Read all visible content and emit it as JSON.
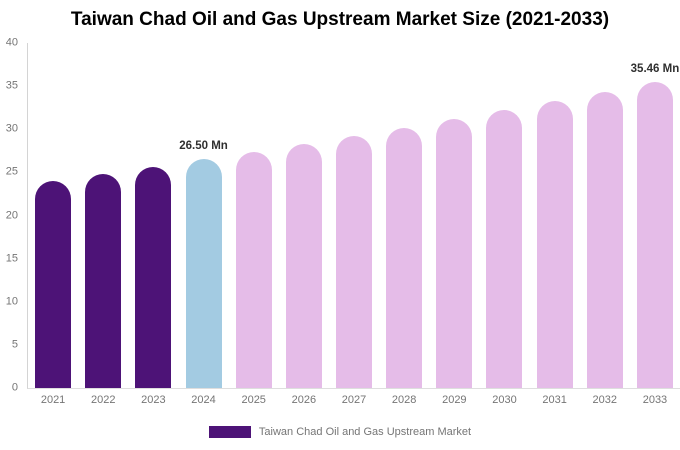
{
  "title": "Taiwan Chad Oil and Gas Upstream Market Size (2021-2033)",
  "unit": "Mn",
  "legend": {
    "label": "Taiwan Chad Oil and Gas Upstream Market",
    "swatch_color": "#4d1377"
  },
  "colors": {
    "historical_bar": "#4d1377",
    "highlight_bar": "#a3cbe2",
    "forecast_bar": "#e5bce8",
    "axis_line": "#d4d4d4",
    "tick_text": "#757575",
    "value_label_text": "#2f2f2f",
    "title_text": "#000000",
    "background": "#ffffff"
  },
  "chart_data": {
    "type": "bar",
    "title": "Taiwan Chad Oil and Gas Upstream Market Size (2021-2033)",
    "categories": [
      "2021",
      "2022",
      "2023",
      "2024",
      "2025",
      "2026",
      "2027",
      "2028",
      "2029",
      "2030",
      "2031",
      "2032",
      "2033"
    ],
    "values": [
      24.05,
      24.84,
      25.66,
      26.5,
      27.37,
      28.27,
      29.2,
      30.16,
      31.15,
      32.18,
      33.24,
      34.33,
      35.46
    ],
    "bar_colors": [
      "#4d1377",
      "#4d1377",
      "#4d1377",
      "#a3cbe2",
      "#e5bce8",
      "#e5bce8",
      "#e5bce8",
      "#e5bce8",
      "#e5bce8",
      "#e5bce8",
      "#e5bce8",
      "#e5bce8",
      "#e5bce8"
    ],
    "point_labels": [
      "",
      "",
      "",
      "26.50 Mn",
      "",
      "",
      "",
      "",
      "",
      "",
      "",
      "",
      "35.46 Mn"
    ],
    "xlabel": "",
    "ylabel": "",
    "ylim": [
      0,
      40
    ],
    "yticks": [
      0,
      5,
      10,
      15,
      20,
      25,
      30,
      35,
      40
    ],
    "grid": false,
    "legend_position": "bottom",
    "legend_entries": [
      "Taiwan Chad Oil and Gas Upstream Market"
    ]
  }
}
